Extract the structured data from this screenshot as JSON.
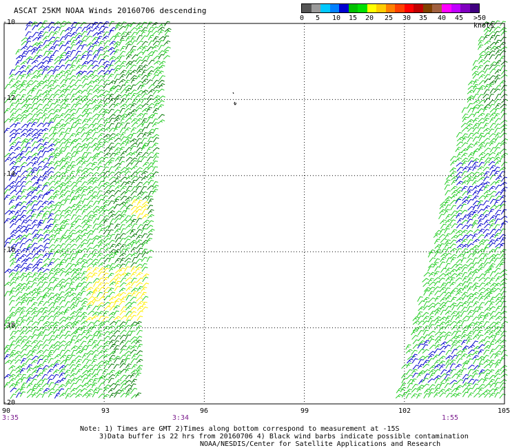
{
  "title": "ASCAT 25KM NOAA Winds 20160706 descending",
  "legend": {
    "labels": [
      "0",
      "5",
      "10",
      "15",
      "20",
      "25",
      "30",
      "35",
      "40",
      "45",
      ">50 knots"
    ],
    "colors": [
      "#555555",
      "#9a9a9a",
      "#00c8ff",
      "#0080ff",
      "#0000d0",
      "#00c000",
      "#00e000",
      "#ffff00",
      "#ffcc00",
      "#ff8000",
      "#ff4000",
      "#ff0000",
      "#c00000",
      "#804000",
      "#a06040",
      "#ff00ff",
      "#c000ff",
      "#8000c0",
      "#400080"
    ]
  },
  "map": {
    "lat_ticks": [
      "-10",
      "-12",
      "-14",
      "-16",
      "-18",
      "-20"
    ],
    "lon_ticks": [
      "90",
      "93",
      "96",
      "99",
      "102",
      "105"
    ],
    "lat_range": [
      -20,
      -10
    ],
    "lon_range": [
      90,
      105
    ],
    "barb_colors": {
      "blue": "#0000cc",
      "light_green": "#22cc22",
      "dark_green": "#007700",
      "yellow": "#ffee00",
      "black": "#000000"
    }
  },
  "times": {
    "left": "3:35",
    "middle": "3:34",
    "right": "1:55"
  },
  "footer": {
    "line1": "Note: 1) Times are GMT 2)Times along bottom correspond to measurement at -15S",
    "line2": "3)Data buffer is 22 hrs from 20160706 4) Black wind barbs indicate possible contamination",
    "line3": "NOAA/NESDIS/Center for Satellite Applications and Research"
  }
}
